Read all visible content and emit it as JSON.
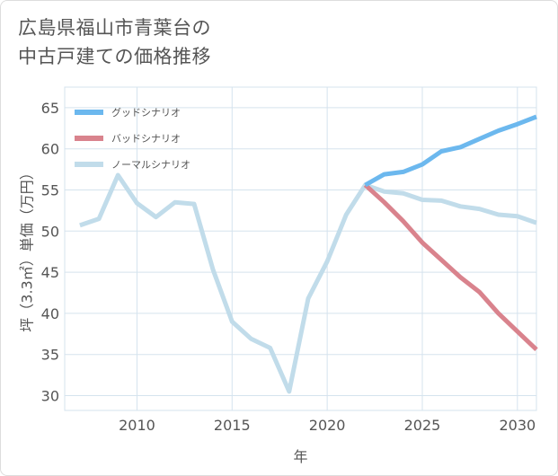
{
  "title_lines": [
    "広島県福山市青葉台の",
    "中古戸建ての価格推移"
  ],
  "colors": {
    "good": "#6cb8ee",
    "bad": "#d9838d",
    "normal": "#c1dcea",
    "grid": "#d5e3ee",
    "axis_text": "#555555"
  },
  "chart_data": {
    "type": "line",
    "xlabel": "年",
    "ylabel": "坪（3.3㎡）単価（万円）",
    "xlim": [
      2006.2,
      2031
    ],
    "ylim": [
      28.2,
      67.5
    ],
    "x_ticks": [
      2010,
      2015,
      2020,
      2025,
      2030
    ],
    "y_ticks": [
      30,
      35,
      40,
      45,
      50,
      55,
      60,
      65
    ],
    "grid": true,
    "legend_position": "top-left",
    "series": [
      {
        "name": "グッドシナリオ",
        "color_key": "good",
        "x": [
          2022,
          2023,
          2024,
          2025,
          2026,
          2027,
          2028,
          2029,
          2030,
          2031
        ],
        "y": [
          55.6,
          56.9,
          57.2,
          58.1,
          59.7,
          60.2,
          61.2,
          62.2,
          63.0,
          63.9
        ]
      },
      {
        "name": "バッドシナリオ",
        "color_key": "bad",
        "x": [
          2022,
          2023,
          2024,
          2025,
          2026,
          2027,
          2028,
          2029,
          2030,
          2031
        ],
        "y": [
          55.6,
          53.5,
          51.2,
          48.6,
          46.5,
          44.4,
          42.6,
          40.0,
          37.8,
          35.6
        ]
      },
      {
        "name": "ノーマルシナリオ",
        "color_key": "normal",
        "x": [
          2007,
          2008,
          2009,
          2010,
          2011,
          2012,
          2013,
          2014,
          2015,
          2016,
          2017,
          2018,
          2019,
          2020,
          2021,
          2022,
          2023,
          2024,
          2025,
          2026,
          2027,
          2028,
          2029,
          2030,
          2031
        ],
        "y": [
          50.7,
          51.5,
          56.8,
          53.4,
          51.7,
          53.5,
          53.3,
          45.3,
          39.0,
          36.9,
          35.8,
          30.5,
          41.8,
          46.3,
          52.0,
          55.6,
          54.8,
          54.6,
          53.8,
          53.7,
          53.0,
          52.7,
          52.0,
          51.8,
          51.0
        ]
      }
    ]
  }
}
